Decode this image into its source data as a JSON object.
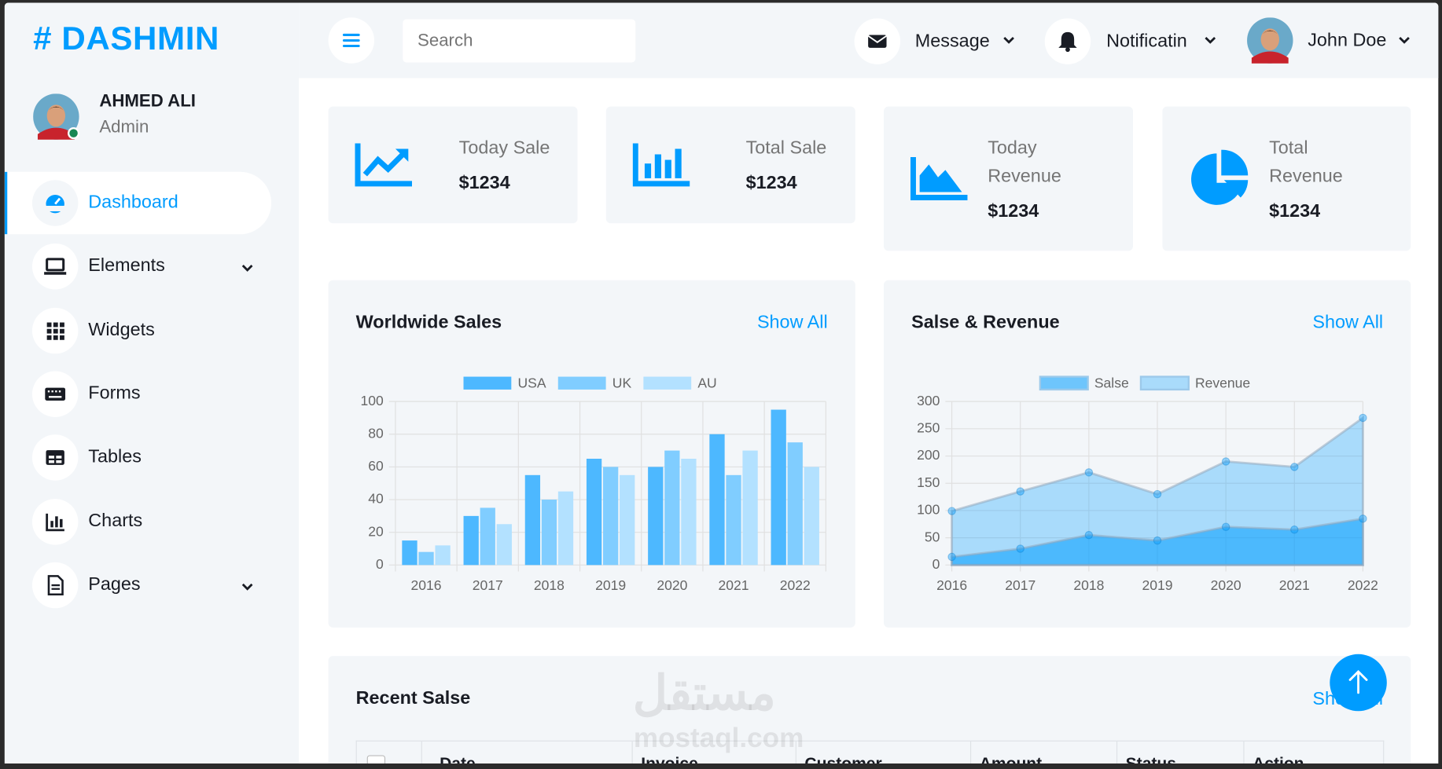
{
  "brand": "# DASHMIN",
  "profile": {
    "name": "AHMED ALI",
    "role": "Admin"
  },
  "nav": [
    "Dashboard",
    "Elements",
    "Widgets",
    "Forms",
    "Tables",
    "Charts",
    "Pages"
  ],
  "topbar": {
    "search_placeholder": "Search",
    "message": "Message",
    "notification": "Notificatin",
    "user": "John Doe"
  },
  "stats": [
    {
      "label": "Today Sale",
      "value": "$1234"
    },
    {
      "label": "Total Sale",
      "value": "$1234"
    },
    {
      "label": "Today Revenue",
      "value": "$1234"
    },
    {
      "label": "Total Revenue",
      "value": "$1234"
    }
  ],
  "chart_data": [
    {
      "type": "bar",
      "title": "Worldwide Sales",
      "link": "Show All",
      "categories": [
        "2016",
        "2017",
        "2018",
        "2019",
        "2020",
        "2021",
        "2022"
      ],
      "series": [
        {
          "name": "USA",
          "color": "#4db8ff",
          "values": [
            15,
            30,
            55,
            65,
            60,
            80,
            95
          ]
        },
        {
          "name": "UK",
          "color": "#80cdff",
          "values": [
            8,
            35,
            40,
            60,
            70,
            55,
            75
          ]
        },
        {
          "name": "AU",
          "color": "#b3e1ff",
          "values": [
            12,
            25,
            45,
            55,
            65,
            70,
            60
          ]
        }
      ],
      "ylim": [
        0,
        100
      ],
      "yticks": [
        0,
        20,
        40,
        60,
        80,
        100
      ],
      "grid": true,
      "legend": "top"
    },
    {
      "type": "area",
      "title": "Salse & Revenue",
      "link": "Show All",
      "categories": [
        "2016",
        "2017",
        "2018",
        "2019",
        "2020",
        "2021",
        "2022"
      ],
      "series": [
        {
          "name": "Salse",
          "color": "#009cff",
          "values": [
            15,
            30,
            55,
            45,
            70,
            65,
            85
          ]
        },
        {
          "name": "Revenue",
          "color": "#009cff",
          "values": [
            99,
            135,
            170,
            130,
            190,
            180,
            270
          ]
        }
      ],
      "ylim": [
        0,
        300
      ],
      "yticks": [
        0,
        50,
        100,
        150,
        200,
        250,
        300
      ],
      "grid": true,
      "legend": "top"
    }
  ],
  "table": {
    "title": "Recent Salse",
    "link": "Show All",
    "columns": [
      "Date",
      "Invoice",
      "Customer",
      "Amount",
      "Status",
      "Action"
    ]
  },
  "watermark": {
    "arabic": "مستقل",
    "latin": "mostaql.com"
  }
}
